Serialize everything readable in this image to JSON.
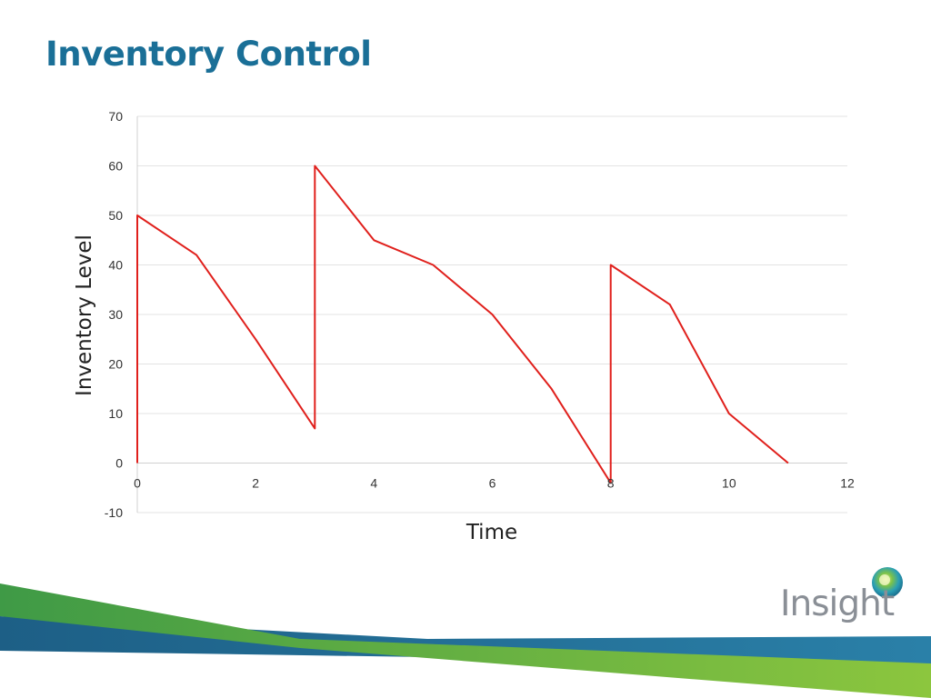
{
  "slide": {
    "title": "Inventory Control",
    "logo_text": "Insight"
  },
  "colors": {
    "title": "#1a6f97",
    "series": "#e0201c",
    "band_blue": "#1f6f9a",
    "band_green": "#6cb33f"
  },
  "chart_data": {
    "type": "line",
    "title": "",
    "xlabel": "Time",
    "ylabel": "Inventory Level",
    "xlim": [
      0,
      12
    ],
    "ylim": [
      -10,
      70
    ],
    "xticks": [
      0,
      2,
      4,
      6,
      8,
      10,
      12
    ],
    "yticks": [
      -10,
      0,
      10,
      20,
      30,
      40,
      50,
      60,
      70
    ],
    "grid": true,
    "series": [
      {
        "color": "#e0201c",
        "x": [
          0,
          0,
          1,
          2,
          3,
          3,
          4,
          5,
          6,
          7,
          8,
          8,
          9,
          10,
          11
        ],
        "y": [
          0,
          50,
          42,
          25,
          7,
          60,
          45,
          40,
          30,
          15,
          -4,
          40,
          32,
          10,
          0
        ]
      }
    ]
  }
}
